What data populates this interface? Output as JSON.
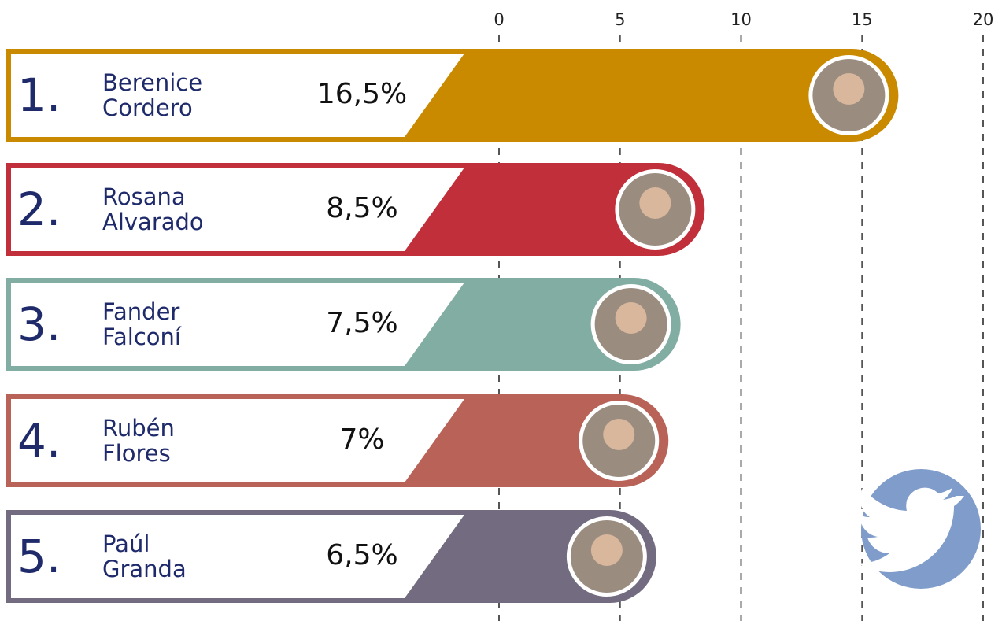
{
  "chart_data": {
    "type": "bar",
    "orientation": "horizontal",
    "ranks": [
      "1.",
      "2.",
      "3.",
      "4.",
      "5."
    ],
    "categories": [
      "Berenice Cordero",
      "Rosana Alvarado",
      "Fander Falconí",
      "Rubén Flores",
      "Paúl Granda"
    ],
    "values": [
      16.5,
      8.5,
      7.5,
      7,
      6.5
    ],
    "value_labels": [
      "16,5%",
      "8,5%",
      "7,5%",
      "7%",
      "6,5%"
    ],
    "colors": [
      "#c98a00",
      "#c1303a",
      "#82ada2",
      "#b96257",
      "#736b7f"
    ],
    "xlim": [
      0,
      20
    ],
    "xticks": [
      0,
      5,
      10,
      15,
      20
    ],
    "grid": true
  }
}
